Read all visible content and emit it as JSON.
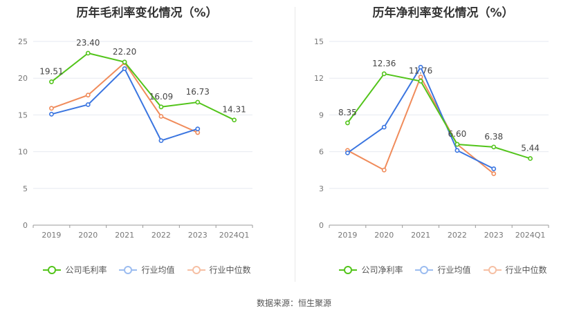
{
  "source": "数据来源：恒生聚源",
  "chart_data": [
    {
      "type": "line",
      "title": "历年毛利率变化情况（%）",
      "categories": [
        "2019",
        "2020",
        "2021",
        "2022",
        "2023",
        "2024Q1"
      ],
      "ylim": [
        0,
        25
      ],
      "yticks": [
        0,
        5,
        10,
        15,
        20,
        25
      ],
      "grid": true,
      "legend_position": "bottom",
      "series": [
        {
          "name": "公司毛利率",
          "color": "#52c41a",
          "values": [
            19.51,
            23.4,
            22.2,
            16.09,
            16.73,
            14.31
          ],
          "labels": [
            "19.51",
            "23.40",
            "22.20",
            "16.09",
            "16.73",
            "14.31"
          ]
        },
        {
          "name": "行业均值",
          "color": "#3a75e0",
          "values": [
            15.1,
            16.4,
            21.3,
            11.5,
            13.1,
            null
          ]
        },
        {
          "name": "行业中位数",
          "color": "#f08b5a",
          "values": [
            15.9,
            17.7,
            22.1,
            14.8,
            12.6,
            null
          ]
        }
      ]
    },
    {
      "type": "line",
      "title": "历年净利率变化情况（%）",
      "categories": [
        "2019",
        "2020",
        "2021",
        "2022",
        "2023",
        "2024Q1"
      ],
      "ylim": [
        0,
        15
      ],
      "yticks": [
        0,
        3,
        6,
        9,
        12,
        15
      ],
      "grid": true,
      "legend_position": "bottom",
      "series": [
        {
          "name": "公司净利率",
          "color": "#52c41a",
          "values": [
            8.35,
            12.36,
            11.76,
            6.6,
            6.38,
            5.44
          ],
          "labels": [
            "8.35",
            "12.36",
            "11.76",
            "6.60",
            "6.38",
            "5.44"
          ]
        },
        {
          "name": "行业均值",
          "color": "#3a75e0",
          "values": [
            5.9,
            8.0,
            12.9,
            6.1,
            4.6,
            null
          ]
        },
        {
          "name": "行业中位数",
          "color": "#f08b5a",
          "values": [
            6.1,
            4.5,
            12.1,
            6.6,
            4.2,
            null
          ]
        }
      ]
    }
  ]
}
